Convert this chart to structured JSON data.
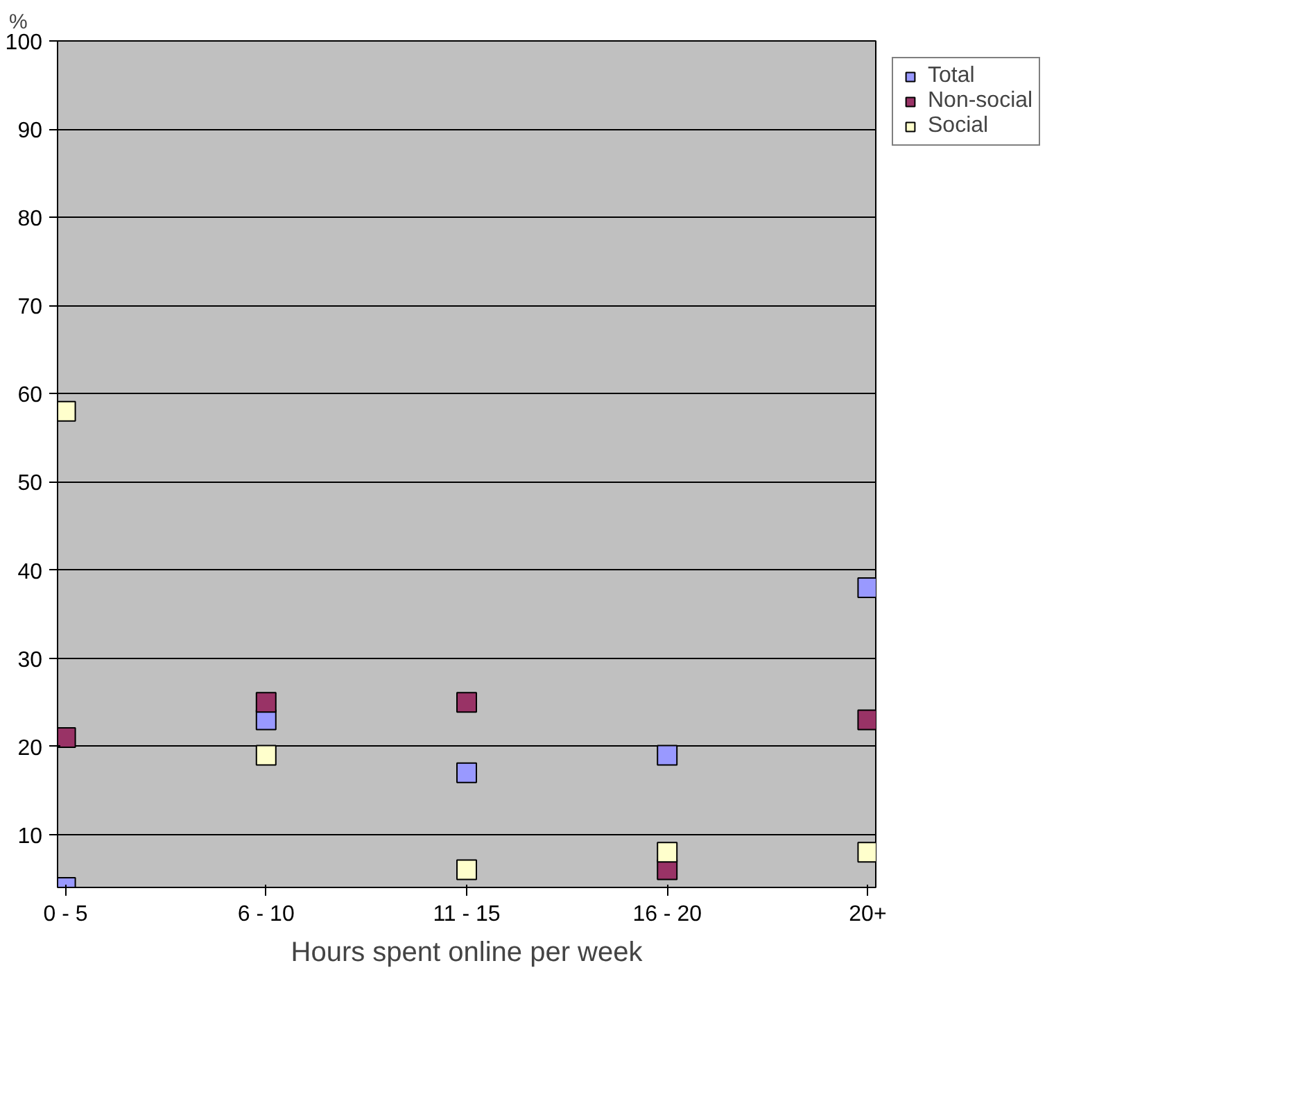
{
  "chart_data": {
    "type": "scatter",
    "xlabel": "Hours spent online per week",
    "ylabel": "%",
    "categories": [
      "0 - 5",
      "6 - 10",
      "11 - 15",
      "16 - 20",
      "20+"
    ],
    "series": [
      {
        "name": "Total",
        "color": "#9999ff",
        "values": [
          4,
          23,
          17,
          19,
          38
        ]
      },
      {
        "name": "Non-social",
        "color": "#993366",
        "values": [
          21,
          25,
          25,
          6,
          23
        ]
      },
      {
        "name": "Social",
        "color": "#ffffcc",
        "values": [
          58,
          19,
          6,
          8,
          8
        ]
      }
    ],
    "ylim": [
      4,
      100
    ],
    "yticks": [
      10,
      20,
      30,
      40,
      50,
      60,
      70,
      80,
      90,
      100
    ],
    "grid": "y",
    "legend": "top right",
    "marker": "square"
  }
}
